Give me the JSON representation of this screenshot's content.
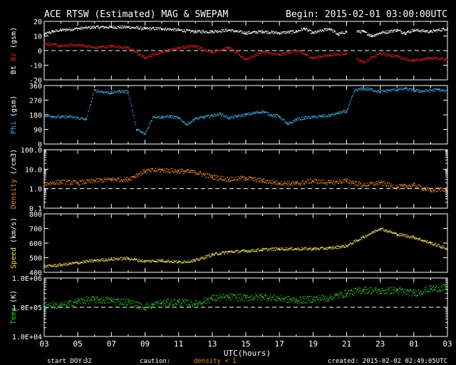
{
  "header": {
    "title": "ACE RTSW (Estimated) MAG & SWEPAM",
    "begin": "Begin: 2015-02-01 03:00:00UTC"
  },
  "footer": {
    "start_doy_label": "start DOY:",
    "start_doy": "32",
    "caution_label": "caution:",
    "caution_note": "density < 1",
    "created": "created: 2015-02-02 02:49:05UTC"
  },
  "colors": {
    "bt": "#ffffff",
    "bz": "#dd2020",
    "phi": "#40a8d8",
    "density": "#f08a30",
    "speed": "#f0e060",
    "temp": "#30d030",
    "axis": "#ffffff"
  },
  "chart_data": {
    "type": "scatter",
    "x_axis": {
      "label": "UTC(hours)",
      "range_hours_from_start": [
        0,
        24
      ],
      "tick_labels": [
        "03",
        "05",
        "07",
        "09",
        "11",
        "13",
        "15",
        "17",
        "19",
        "21",
        "23",
        "01",
        "03"
      ]
    },
    "panels": [
      {
        "id": "mag",
        "ylabel_parts": [
          "Bt",
          "Bz",
          "(gsm)"
        ],
        "ylim": [
          -20,
          20
        ],
        "yticks": [
          -20,
          -10,
          0,
          10,
          20
        ],
        "ytick_labels": [
          "-20",
          "-10",
          "0",
          "10",
          "20"
        ],
        "dashed_ref": 0,
        "scale": "linear",
        "series": [
          {
            "name": "Bt",
            "color": "white",
            "x": [
              0,
              0.5,
              1,
              2,
              3,
              4,
              5,
              6,
              7,
              8,
              9,
              10,
              11,
              12,
              13,
              14,
              15,
              15.5,
              16,
              17,
              17.5,
              18,
              19,
              19.5,
              20,
              21,
              21.5,
              22,
              23,
              24
            ],
            "y": [
              11,
              13,
              14,
              15,
              16,
              16,
              16,
              15,
              15,
              14,
              13,
              13,
              14,
              12,
              13,
              12,
              13,
              15,
              12,
              15,
              11,
              13,
              13,
              10,
              12,
              14,
              12,
              14,
              13,
              15
            ],
            "gaps_after_hours": [
              18
            ]
          },
          {
            "name": "Bz",
            "color": "red",
            "x": [
              0,
              1,
              2,
              3,
              4,
              5,
              6,
              7,
              8,
              9,
              10,
              11,
              12,
              13,
              14,
              15,
              16,
              17,
              18,
              19,
              20,
              21,
              22,
              23,
              24
            ],
            "y": [
              5,
              3,
              4,
              2,
              3,
              2,
              -5,
              -1,
              2,
              3,
              -1,
              2,
              -6,
              -1,
              -3,
              0,
              -5,
              -3,
              -2,
              -8,
              -2,
              -4,
              -7,
              -5,
              -6
            ],
            "gaps_after_hours": [
              18
            ]
          }
        ]
      },
      {
        "id": "phi",
        "ylabel_parts": [
          "Phi",
          "(gsm)"
        ],
        "ylim": [
          0,
          360
        ],
        "yticks": [
          0,
          90,
          180,
          270,
          360
        ],
        "ytick_labels": [
          "0",
          "90",
          "180",
          "270",
          "360"
        ],
        "scale": "linear",
        "series": [
          {
            "name": "Phi",
            "color": "#40a8d8",
            "x": [
              0,
              0.5,
              1,
              1.5,
              2,
              2.5,
              3,
              3.5,
              4,
              4.5,
              5,
              5.5,
              6,
              6.5,
              7,
              7.5,
              8,
              8.5,
              9,
              9.5,
              10,
              10.5,
              11,
              11.5,
              12,
              12.5,
              13,
              13.5,
              14,
              14.5,
              15,
              15.5,
              16,
              16.5,
              17,
              17.5,
              18,
              18.5,
              19,
              19.5,
              20,
              20.5,
              21,
              21.5,
              22,
              22.5,
              23,
              23.5,
              24
            ],
            "y": [
              175,
              170,
              165,
              168,
              160,
              150,
              330,
              320,
              315,
              325,
              320,
              90,
              60,
              170,
              165,
              170,
              160,
              120,
              155,
              165,
              175,
              185,
              160,
              170,
              180,
              190,
              200,
              180,
              170,
              120,
              150,
              160,
              165,
              170,
              175,
              190,
              200,
              330,
              340,
              335,
              320,
              330,
              335,
              340,
              330,
              325,
              330,
              335,
              320
            ]
          }
        ]
      },
      {
        "id": "density",
        "ylabel_parts": [
          "Density",
          "(/cm3)"
        ],
        "ylim": [
          0.1,
          100
        ],
        "scale": "log",
        "yticks": [
          0.1,
          1,
          10,
          100
        ],
        "ytick_labels": [
          "0.1",
          "1.0",
          "10.0",
          "100.0"
        ],
        "dashed_ref": 1,
        "series": [
          {
            "name": "Density",
            "color": "#f08a30",
            "x": [
              0,
              1,
              2,
              3,
              4,
              5,
              6,
              7,
              8,
              9,
              10,
              11,
              12,
              13,
              14,
              15,
              16,
              17,
              18,
              19,
              20,
              21,
              22,
              23,
              24
            ],
            "y": [
              1.8,
              2.2,
              2.0,
              2.5,
              3.0,
              3.0,
              8.0,
              9.0,
              8.0,
              7.0,
              4.0,
              3.0,
              3.5,
              2.5,
              2.0,
              1.8,
              2.5,
              2.0,
              2.5,
              1.5,
              2.0,
              1.2,
              1.5,
              0.8,
              1.0
            ]
          }
        ]
      },
      {
        "id": "speed",
        "ylabel_parts": [
          "Speed",
          "(km/s)"
        ],
        "ylim": [
          400,
          800
        ],
        "scale": "linear",
        "yticks": [
          400,
          500,
          600,
          700,
          800
        ],
        "ytick_labels": [
          "400",
          "500",
          "600",
          "700",
          "800"
        ],
        "series": [
          {
            "name": "Speed",
            "color": "#f0e060",
            "x": [
              0,
              1,
              2,
              3,
              4,
              5,
              6,
              7,
              8,
              9,
              10,
              11,
              12,
              13,
              14,
              15,
              16,
              17,
              18,
              19,
              20,
              21,
              22,
              23,
              24
            ],
            "y": [
              440,
              450,
              465,
              480,
              490,
              495,
              475,
              480,
              470,
              480,
              520,
              540,
              545,
              555,
              560,
              560,
              560,
              565,
              580,
              640,
              700,
              660,
              640,
              600,
              560
            ]
          }
        ]
      },
      {
        "id": "temp",
        "ylabel_parts": [
          "Temp",
          "(K)"
        ],
        "ylim": [
          10000,
          1000000
        ],
        "scale": "log",
        "yticks": [
          10000,
          100000,
          1000000
        ],
        "ytick_labels": [
          "1.0E+04",
          "1.0E+05",
          "1.0E+06"
        ],
        "dashed_ref": 100000,
        "series": [
          {
            "name": "Temp",
            "color": "#30d030",
            "x": [
              0,
              1,
              2,
              3,
              4,
              5,
              6,
              7,
              8,
              9,
              10,
              11,
              12,
              13,
              14,
              15,
              16,
              17,
              18,
              19,
              20,
              21,
              22,
              23,
              24
            ],
            "y": [
              120000,
              110000,
              160000,
              180000,
              170000,
              150000,
              100000,
              140000,
              150000,
              130000,
              200000,
              220000,
              210000,
              230000,
              200000,
              170000,
              190000,
              210000,
              300000,
              400000,
              350000,
              380000,
              300000,
              420000,
              450000
            ]
          }
        ]
      }
    ]
  }
}
